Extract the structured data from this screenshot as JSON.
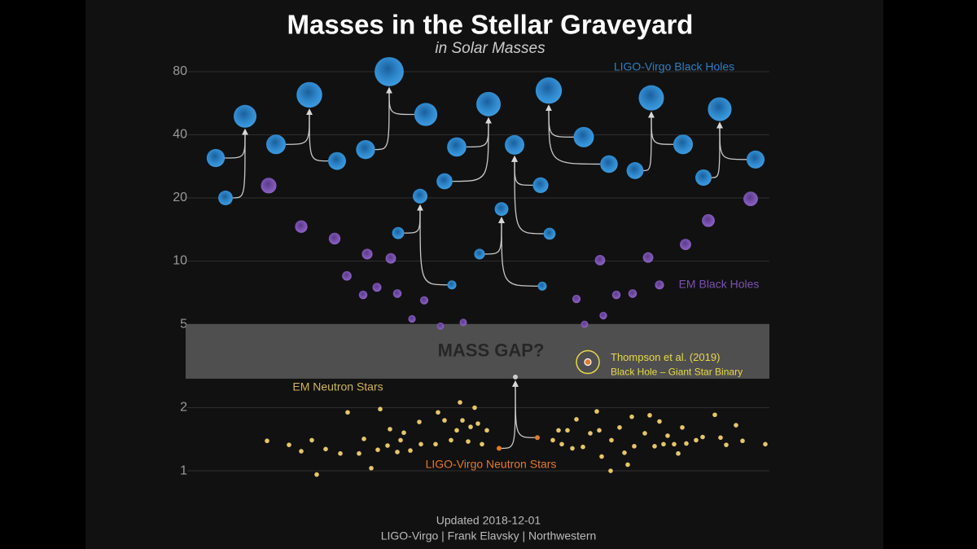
{
  "chart_data": {
    "type": "scatter",
    "title": "Masses in the Stellar Graveyard",
    "subtitle": "in Solar Masses",
    "log_y": true,
    "grid": true,
    "ylim": [
      0.8,
      100
    ],
    "yticks": [
      1,
      2,
      5,
      10,
      20,
      40,
      80
    ],
    "series": [
      {
        "name": "LIGO-Virgo Black Holes",
        "color": "#2d7fc4",
        "primary": [
          31,
          36,
          50,
          13.6,
          35,
          10.8,
          23,
          39,
          36,
          30.5
        ],
        "secondary": [
          20,
          30,
          34,
          7.7,
          24,
          7.6,
          13.5,
          29,
          27,
          25
        ],
        "values": [
          49,
          62,
          80,
          20.4,
          56,
          17.7,
          35.8,
          65,
          60,
          53
        ]
      },
      {
        "name": "EM Black Holes",
        "color": "#7b52b0",
        "values": [
          22.9,
          14.6,
          12.8,
          8.5,
          10.8,
          6.9,
          7.5,
          10.3,
          7,
          6.5,
          5.3,
          4.9,
          5.1,
          6.6,
          5.0,
          5.5,
          10.1,
          6.9,
          7.0,
          10.4,
          7.7,
          12,
          15.6,
          19.8
        ]
      },
      {
        "name": "EM Neutron Stars",
        "color": "#e6c66a",
        "values": [
          1.39,
          1.33,
          1.24,
          1.4,
          0.96,
          1.27,
          1.21,
          1.9,
          1.21,
          1.42,
          1.03,
          1.26,
          1.97,
          1.32,
          1.58,
          1.23,
          1.4,
          1.52,
          1.25,
          1.71,
          1.34,
          1.34,
          1.9,
          1.74,
          1.4,
          1.56,
          2.12,
          1.74,
          1.38,
          1.62,
          2.0,
          1.68,
          1.34,
          1.56,
          1.4,
          1.56,
          1.34,
          1.56,
          1.28,
          1.76,
          1.3,
          1.51,
          1.92,
          1.56,
          1.17,
          1.0,
          1.4,
          1.61,
          1.22,
          1.07,
          1.81,
          1.31,
          1.51,
          1.84,
          1.31,
          1.72,
          1.34,
          1.47,
          1.34,
          1.21,
          1.61,
          1.35,
          1.4,
          1.45,
          1.85,
          1.44,
          1.33,
          1.65,
          1.39,
          1.34
        ]
      },
      {
        "name": "LIGO-Virgo Neutron Stars",
        "color": "#e07a2c",
        "primary": [
          1.44
        ],
        "secondary": [
          1.28
        ],
        "values": [
          2.8
        ]
      }
    ],
    "mass_gap": {
      "label": "MASS GAP?",
      "range": [
        2.75,
        5
      ]
    },
    "thompson": {
      "label": "Thompson et al. (2019)",
      "sublabel": "Black Hole – Giant Star Binary",
      "value": 3.3,
      "color": "#e8d84a"
    },
    "footer": [
      "Updated 2018-12-01",
      "LIGO-Virgo | Frank Elavsky | Northwestern"
    ]
  }
}
